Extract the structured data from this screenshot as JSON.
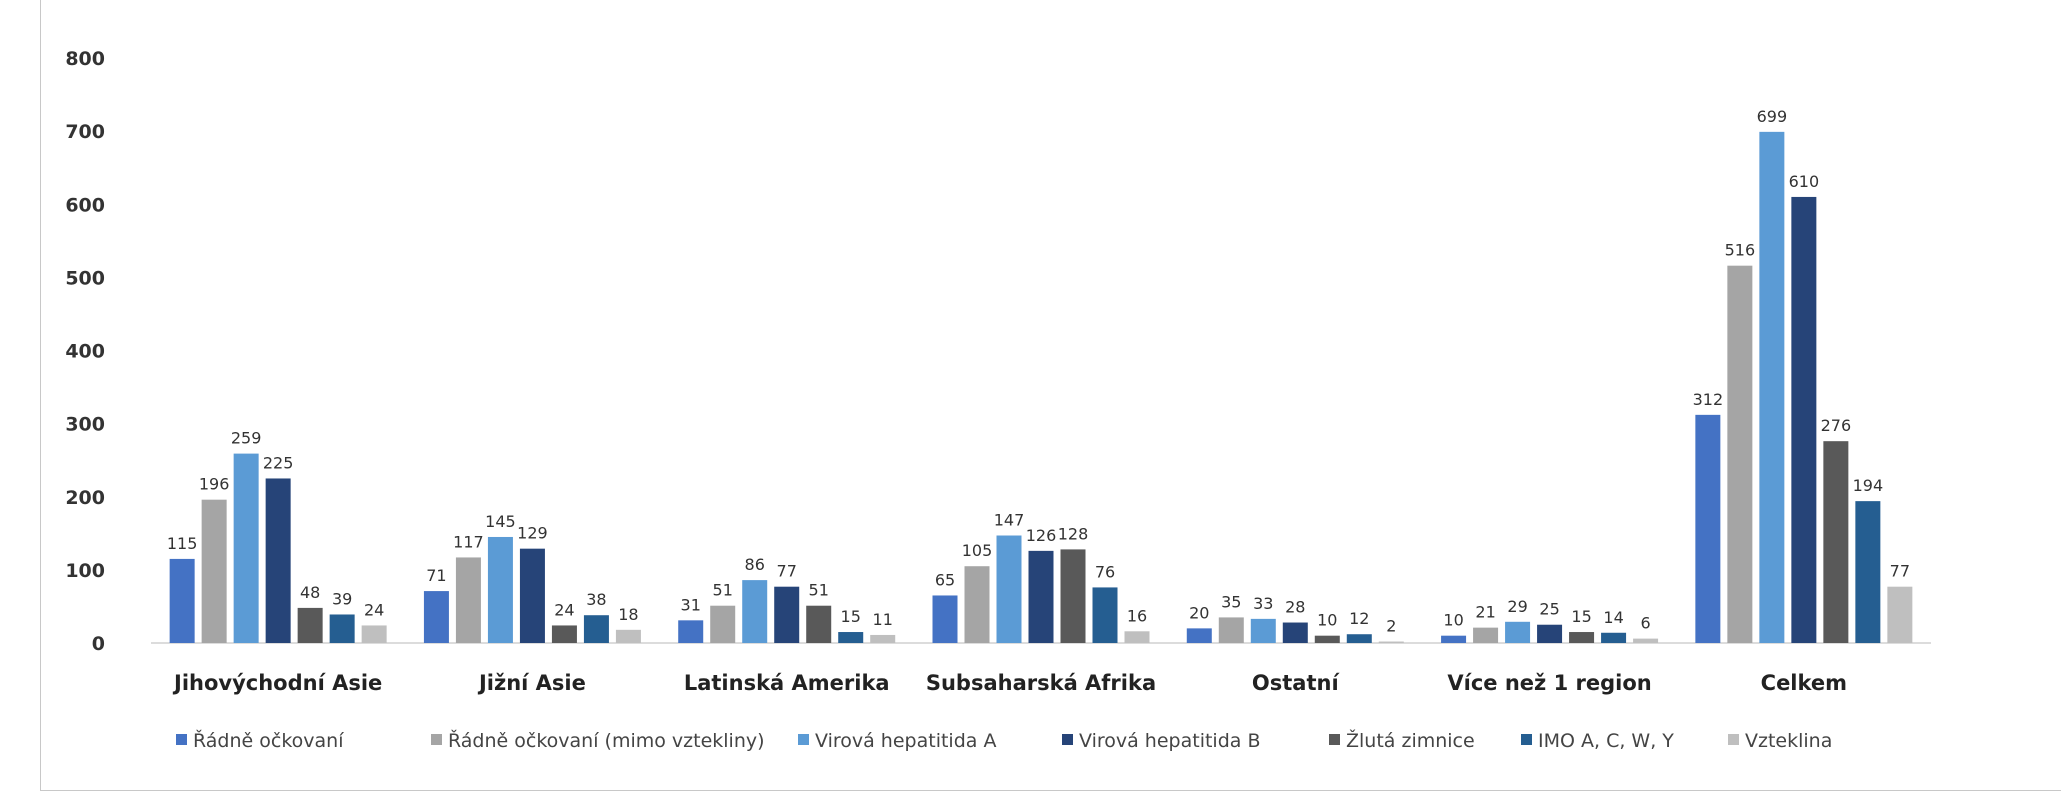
{
  "chart_data": {
    "type": "bar",
    "title": "",
    "xlabel": "",
    "ylabel": "",
    "ylim": [
      0,
      800
    ],
    "yticks": [
      0,
      100,
      200,
      300,
      400,
      500,
      600,
      700,
      800
    ],
    "grid": false,
    "legend_position": "bottom",
    "categories": [
      "Jihovýchodní Asie",
      "Jižní Asie",
      "Latinská Amerika",
      "Subsaharská Afrika",
      "Ostatní",
      "Více než 1 region",
      "Celkem"
    ],
    "series": [
      {
        "name": "Řádně očkovaní",
        "color": "#4472c4",
        "values": [
          115,
          71,
          31,
          65,
          20,
          10,
          312
        ]
      },
      {
        "name": "Řádně očkovaní (mimo vztekliny)",
        "color": "#a5a5a5",
        "values": [
          196,
          117,
          51,
          105,
          35,
          21,
          516
        ]
      },
      {
        "name": "Virová hepatitida A",
        "color": "#5b9bd5",
        "values": [
          259,
          145,
          86,
          147,
          33,
          29,
          699
        ]
      },
      {
        "name": "Virová hepatitida B",
        "color": "#264478",
        "values": [
          225,
          129,
          77,
          126,
          28,
          25,
          610
        ]
      },
      {
        "name": "Žlutá zimnice",
        "color": "#595959",
        "values": [
          48,
          24,
          51,
          128,
          10,
          15,
          276
        ]
      },
      {
        "name": "IMO A, C, W, Y",
        "color": "#255e91",
        "values": [
          39,
          38,
          15,
          76,
          12,
          14,
          194
        ]
      },
      {
        "name": "Vzteklina",
        "color": "#bfbfbf",
        "values": [
          24,
          18,
          11,
          16,
          2,
          6,
          77
        ]
      }
    ]
  }
}
